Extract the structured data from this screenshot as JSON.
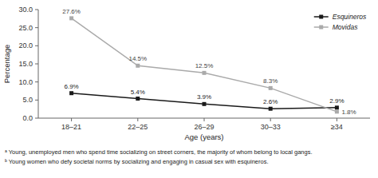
{
  "chart_data": {
    "type": "line",
    "categories": [
      "18–21",
      "22–25",
      "26–29",
      "30–33",
      "≥34"
    ],
    "series": [
      {
        "name": "Esquineros",
        "color": "#1a1a1a",
        "marker": "square",
        "line_style": "solid",
        "values": [
          6.9,
          5.4,
          3.9,
          2.6,
          2.9
        ],
        "value_labels": [
          "6.9%",
          "5.4%",
          "3.9%",
          "2.6%",
          "2.9%"
        ]
      },
      {
        "name": "Movidas",
        "color": "#aaaaaa",
        "marker": "square",
        "line_style": "solid",
        "values": [
          27.6,
          14.5,
          12.5,
          8.3,
          1.8
        ],
        "value_labels": [
          "27.6%",
          "14.5%",
          "12.5%",
          "8.3%",
          "1.8%"
        ]
      }
    ],
    "x_label": "Age (years)",
    "y_label": "Percentage",
    "ylim": [
      0.0,
      30.0
    ],
    "yticks": [
      {
        "value": 0.0,
        "label": "0.0"
      },
      {
        "value": 5.0,
        "label": "5.0"
      },
      {
        "value": 10.0,
        "label": "10.0"
      },
      {
        "value": 15.0,
        "label": "15.0"
      },
      {
        "value": 20.0,
        "label": "20.0"
      },
      {
        "value": 25.0,
        "label": "25.0"
      },
      {
        "value": 30.0,
        "label": "30.0"
      }
    ],
    "legend": "upper right",
    "data_labels": true,
    "grid": false,
    "annotations": [
      "ᵃ Young, unemployed men who spend time socializing on street corners, the majority of whom belong to local gangs.",
      "ᵇ Young women who defy societal norms by socializing and engaging in casual sex with esquineros."
    ]
  }
}
